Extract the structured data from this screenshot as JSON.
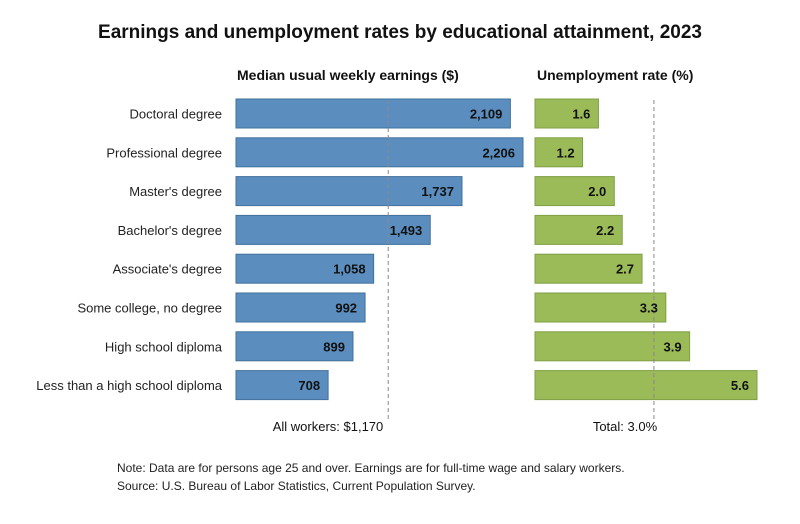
{
  "chart_data": {
    "type": "bar",
    "title": "Earnings and unemployment rates by educational attainment, 2023",
    "categories": [
      "Doctoral degree",
      "Professional degree",
      "Master's degree",
      "Bachelor's degree",
      "Associate's degree",
      "Some college, no degree",
      "High school diploma",
      "Less than a high school diploma"
    ],
    "panels": [
      {
        "title": "Median usual weekly earnings ($)",
        "series": [
          {
            "values": [
              2109,
              2206,
              1737,
              1493,
              1058,
              992,
              899,
              708
            ],
            "labels": [
              "2,109",
              "2,206",
              "1,737",
              "1,493",
              "1,058",
              "992",
              "899",
              "708"
            ]
          }
        ],
        "xlim": [
          0,
          2206
        ],
        "reference": {
          "value": 1170,
          "label": "All workers: $1,170"
        },
        "color": "#5b8ebf",
        "border": "#41719c"
      },
      {
        "title": "Unemployment rate (%)",
        "series": [
          {
            "values": [
              1.6,
              1.2,
              2.0,
              2.2,
              2.7,
              3.3,
              3.9,
              5.6
            ],
            "labels": [
              "1.6",
              "1.2",
              "2.0",
              "2.2",
              "2.7",
              "3.3",
              "3.9",
              "5.6"
            ]
          }
        ],
        "xlim": [
          0,
          5.6
        ],
        "reference": {
          "value": 3.0,
          "label": "Total: 3.0%"
        },
        "color": "#9bbb59",
        "border": "#7f9f45"
      }
    ],
    "grid": false,
    "note": "Note: Data are for persons age 25 and over. Earnings are for full-time wage and salary workers.",
    "source": "Source: U.S. Bureau of Labor Statistics, Current Population Survey."
  }
}
